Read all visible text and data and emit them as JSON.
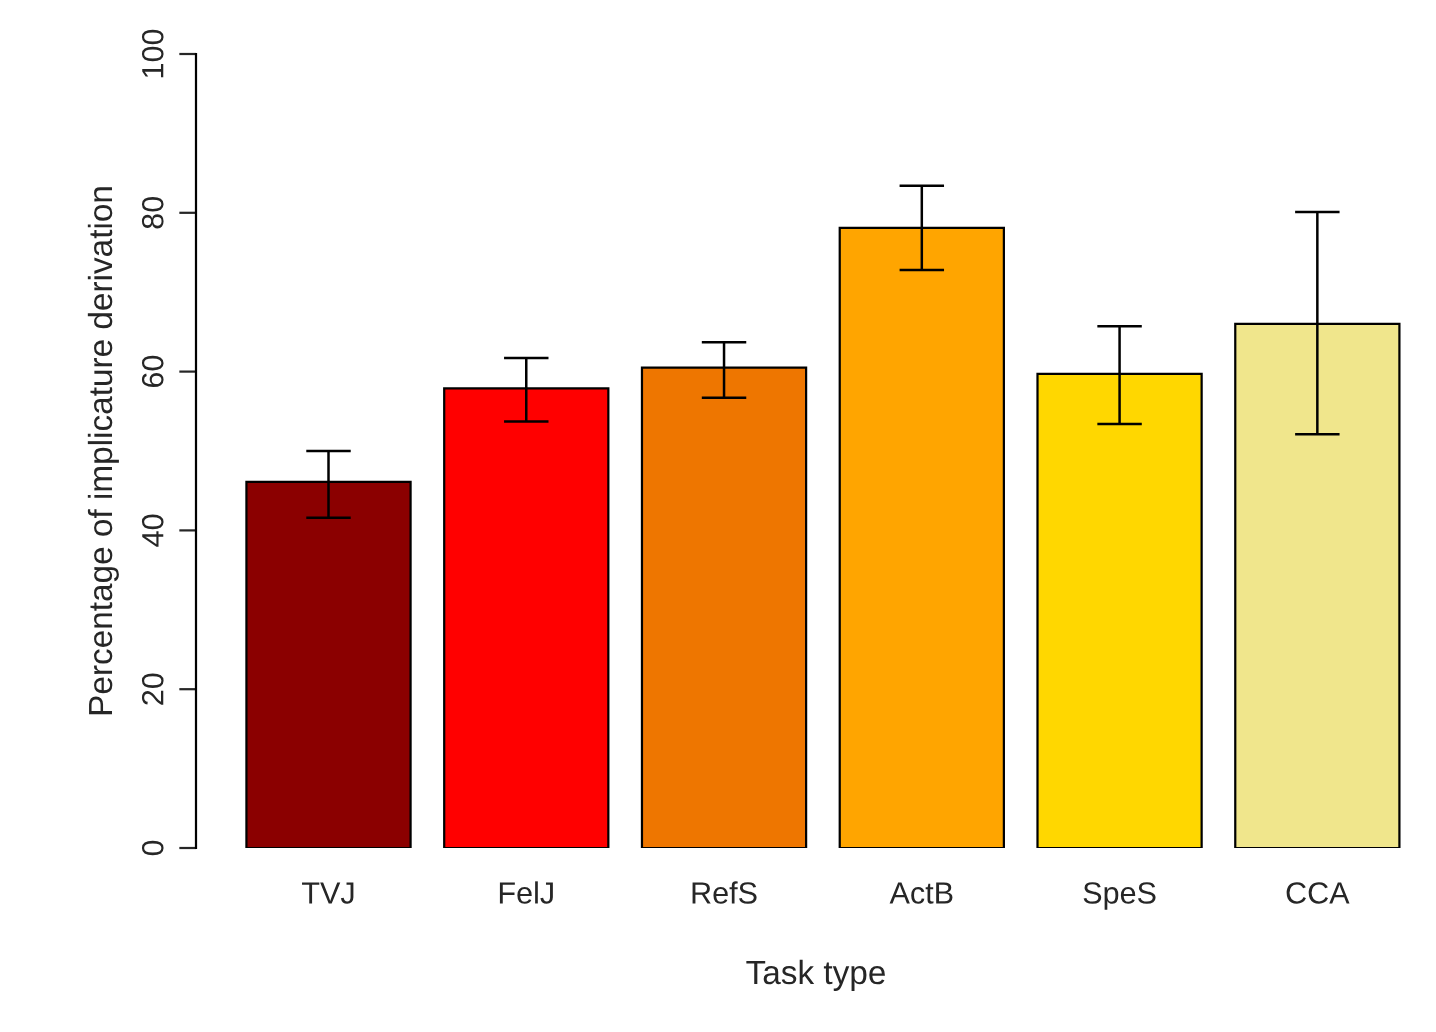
{
  "chart_data": {
    "type": "bar",
    "xlabel": "Task type",
    "ylabel": "Percentage of implicature derivation",
    "categories": [
      "TVJ",
      "FelJ",
      "RefS",
      "ActB",
      "SpeS",
      "CCA"
    ],
    "values": [
      46.1,
      57.9,
      60.5,
      78.1,
      59.7,
      66.0
    ],
    "colors": [
      "#8b0000",
      "#ff0000",
      "#ee7600",
      "#ffa500",
      "#ffd700",
      "#f0e68c"
    ],
    "errors": [
      [
        41.6,
        50.0
      ],
      [
        53.7,
        61.7
      ],
      [
        56.7,
        63.7
      ],
      [
        72.8,
        83.4
      ],
      [
        53.4,
        65.7
      ],
      [
        52.1,
        80.1
      ]
    ],
    "ylim": [
      0,
      100
    ],
    "yticks": [
      0,
      20,
      40,
      60,
      80,
      100
    ],
    "grid": false,
    "legend": false
  }
}
